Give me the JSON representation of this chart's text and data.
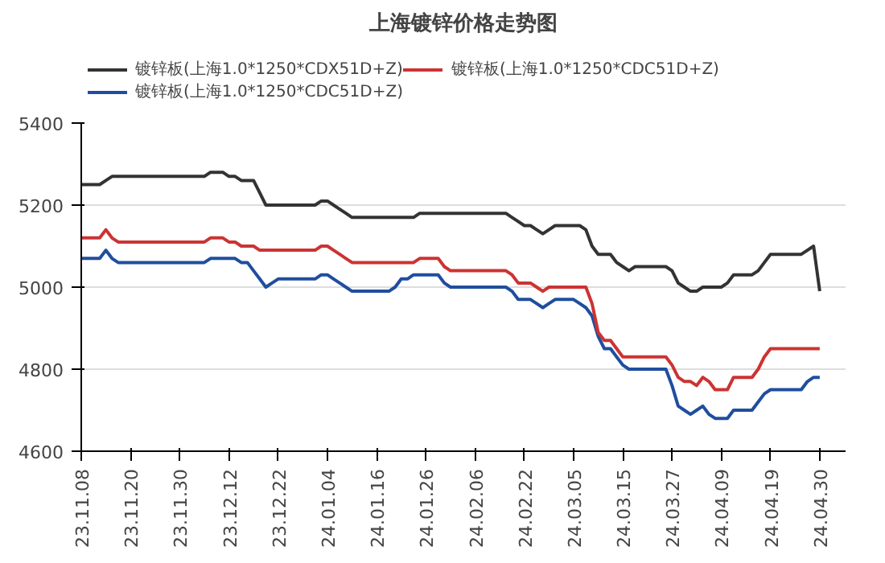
{
  "chart_data": {
    "type": "line",
    "title": "上海镀锌价格走势图",
    "categories": [
      "23.11.08",
      null,
      null,
      null,
      null,
      null,
      null,
      null,
      "23.11.20",
      null,
      null,
      null,
      null,
      null,
      null,
      null,
      "23.11.30",
      null,
      null,
      null,
      null,
      null,
      null,
      null,
      "23.12.12",
      null,
      null,
      null,
      null,
      null,
      null,
      null,
      "23.12.22",
      null,
      null,
      null,
      null,
      null,
      null,
      null,
      "24.01.04",
      null,
      null,
      null,
      null,
      null,
      null,
      null,
      "24.01.16",
      null,
      null,
      null,
      null,
      null,
      null,
      null,
      "24.01.26",
      null,
      null,
      null,
      null,
      null,
      null,
      null,
      "24.02.06",
      null,
      null,
      null,
      null,
      null,
      null,
      null,
      "24.02.22",
      null,
      null,
      null,
      null,
      null,
      null,
      null,
      "24.03.05",
      null,
      null,
      null,
      null,
      null,
      null,
      null,
      "24.03.15",
      null,
      null,
      null,
      null,
      null,
      null,
      null,
      "24.03.27",
      null,
      null,
      null,
      null,
      null,
      null,
      null,
      "24.04.09",
      null,
      null,
      null,
      null,
      null,
      null,
      null,
      "24.04.19",
      null,
      null,
      null,
      null,
      null,
      null,
      null,
      "24.04.30"
    ],
    "ylim": [
      4600,
      5400
    ],
    "yticks": [
      4600,
      4800,
      5000,
      5200,
      5400
    ],
    "grid": "y",
    "legend": "top",
    "marker": "none",
    "line_style": "solid",
    "series": [
      {
        "name": "镀锌板(上海1.0*1250*CDX51D+Z)",
        "color": "#333333",
        "values": [
          5250,
          5250,
          5250,
          5250,
          5260,
          5270,
          5270,
          5270,
          5270,
          5270,
          5270,
          5270,
          5270,
          5270,
          5270,
          5270,
          5270,
          5270,
          5270,
          5270,
          5270,
          5280,
          5280,
          5280,
          5270,
          5270,
          5260,
          5260,
          5260,
          5230,
          5200,
          5200,
          5200,
          5200,
          5200,
          5200,
          5200,
          5200,
          5200,
          5210,
          5210,
          5200,
          5190,
          5180,
          5170,
          5170,
          5170,
          5170,
          5170,
          5170,
          5170,
          5170,
          5170,
          5170,
          5170,
          5180,
          5180,
          5180,
          5180,
          5180,
          5180,
          5180,
          5180,
          5180,
          5180,
          5180,
          5180,
          5180,
          5180,
          5180,
          5170,
          5160,
          5150,
          5150,
          5140,
          5130,
          5140,
          5150,
          5150,
          5150,
          5150,
          5150,
          5140,
          5100,
          5080,
          5080,
          5080,
          5060,
          5050,
          5040,
          5050,
          5050,
          5050,
          5050,
          5050,
          5050,
          5040,
          5010,
          5000,
          4990,
          4990,
          5000,
          5000,
          5000,
          5000,
          5010,
          5030,
          5030,
          5030,
          5030,
          5040,
          5060,
          5080,
          5080,
          5080,
          5080,
          5080,
          5080,
          5090,
          5100,
          4990
        ]
      },
      {
        "name": "镀锌板(上海1.0*1250*CDC51D+Z)",
        "color": "#1f4e9e",
        "values": [
          5070,
          5070,
          5070,
          5070,
          5090,
          5070,
          5060,
          5060,
          5060,
          5060,
          5060,
          5060,
          5060,
          5060,
          5060,
          5060,
          5060,
          5060,
          5060,
          5060,
          5060,
          5070,
          5070,
          5070,
          5070,
          5070,
          5060,
          5060,
          5040,
          5020,
          5000,
          5010,
          5020,
          5020,
          5020,
          5020,
          5020,
          5020,
          5020,
          5030,
          5030,
          5020,
          5010,
          5000,
          4990,
          4990,
          4990,
          4990,
          4990,
          4990,
          4990,
          5000,
          5020,
          5020,
          5030,
          5030,
          5030,
          5030,
          5030,
          5010,
          5000,
          5000,
          5000,
          5000,
          5000,
          5000,
          5000,
          5000,
          5000,
          5000,
          4990,
          4970,
          4970,
          4970,
          4960,
          4950,
          4960,
          4970,
          4970,
          4970,
          4970,
          4960,
          4950,
          4930,
          4880,
          4850,
          4850,
          4830,
          4810,
          4800,
          4800,
          4800,
          4800,
          4800,
          4800,
          4800,
          4760,
          4710,
          4700,
          4690,
          4700,
          4710,
          4690,
          4680,
          4680,
          4680,
          4700,
          4700,
          4700,
          4700,
          4720,
          4740,
          4750,
          4750,
          4750,
          4750,
          4750,
          4750,
          4770,
          4780,
          4780
        ]
      },
      {
        "name": "镀锌板(上海1.0*1250*CDC51D+Z)",
        "color": "#cc3333",
        "values": [
          5120,
          5120,
          5120,
          5120,
          5140,
          5120,
          5110,
          5110,
          5110,
          5110,
          5110,
          5110,
          5110,
          5110,
          5110,
          5110,
          5110,
          5110,
          5110,
          5110,
          5110,
          5120,
          5120,
          5120,
          5110,
          5110,
          5100,
          5100,
          5100,
          5090,
          5090,
          5090,
          5090,
          5090,
          5090,
          5090,
          5090,
          5090,
          5090,
          5100,
          5100,
          5090,
          5080,
          5070,
          5060,
          5060,
          5060,
          5060,
          5060,
          5060,
          5060,
          5060,
          5060,
          5060,
          5060,
          5070,
          5070,
          5070,
          5070,
          5050,
          5040,
          5040,
          5040,
          5040,
          5040,
          5040,
          5040,
          5040,
          5040,
          5040,
          5030,
          5010,
          5010,
          5010,
          5000,
          4990,
          5000,
          5000,
          5000,
          5000,
          5000,
          5000,
          5000,
          4960,
          4890,
          4870,
          4870,
          4850,
          4830,
          4830,
          4830,
          4830,
          4830,
          4830,
          4830,
          4830,
          4810,
          4780,
          4770,
          4770,
          4760,
          4780,
          4770,
          4750,
          4750,
          4750,
          4780,
          4780,
          4780,
          4780,
          4800,
          4830,
          4850,
          4850,
          4850,
          4850,
          4850,
          4850,
          4850,
          4850,
          4850
        ]
      }
    ]
  }
}
